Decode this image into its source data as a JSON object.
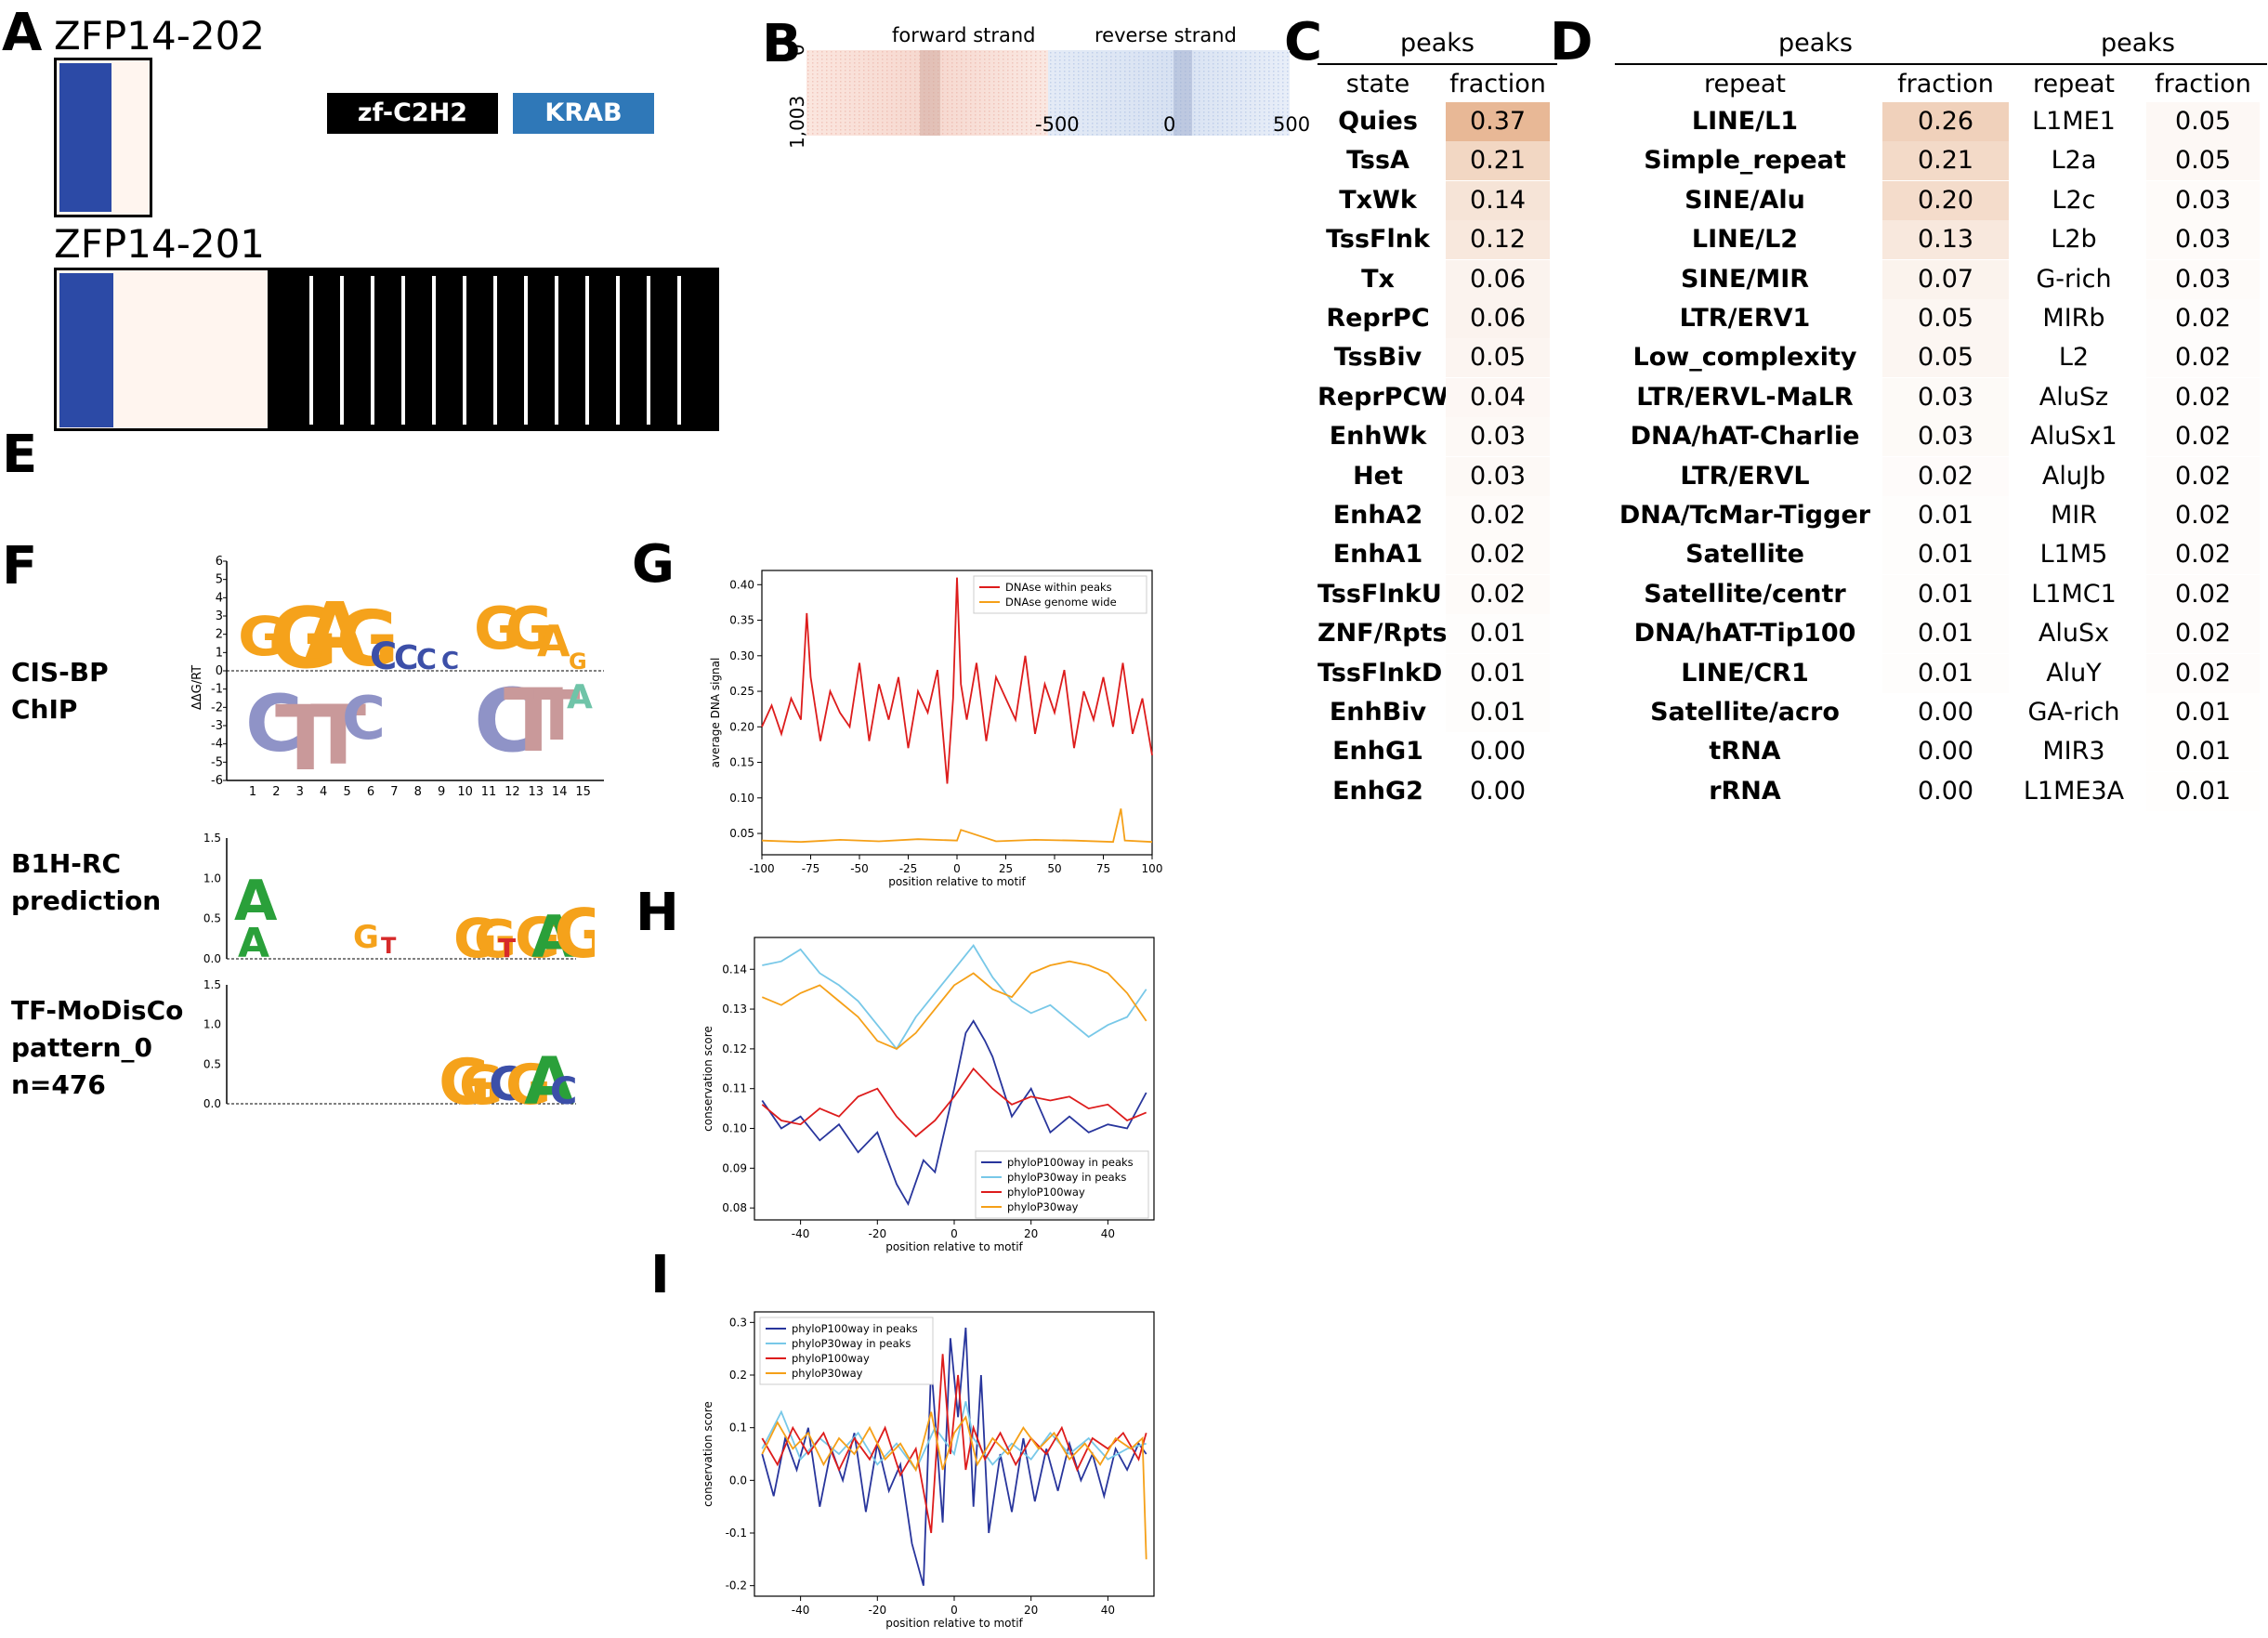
{
  "panels": {
    "A": "A",
    "B": "B",
    "C": "C",
    "D": "D",
    "E": "E",
    "F": "F",
    "G": "G",
    "H": "H",
    "I": "I"
  },
  "isoforms": {
    "iso1": {
      "name": "ZFP14-202"
    },
    "iso2": {
      "name": "ZFP14-201"
    },
    "legend": {
      "zf": "zf-C2H2",
      "krab": "KRAB",
      "zf_color": "#000000",
      "krab_color": "#2f78b8"
    }
  },
  "heatmap_b": {
    "forward": "forward strand",
    "reverse": "reverse strand",
    "ytop": "0",
    "ybottom": "1,003",
    "xticks": [
      "-500",
      "0",
      "500"
    ]
  },
  "table_c": {
    "title": "peaks",
    "col1": "state",
    "col2": "fraction",
    "rows": [
      {
        "k": "Quies",
        "v": "0.37"
      },
      {
        "k": "TssA",
        "v": "0.21"
      },
      {
        "k": "TxWk",
        "v": "0.14"
      },
      {
        "k": "TssFlnk",
        "v": "0.12"
      },
      {
        "k": "Tx",
        "v": "0.06"
      },
      {
        "k": "ReprPC",
        "v": "0.06"
      },
      {
        "k": "TssBiv",
        "v": "0.05"
      },
      {
        "k": "ReprPCWk",
        "v": "0.04"
      },
      {
        "k": "EnhWk",
        "v": "0.03"
      },
      {
        "k": "Het",
        "v": "0.03"
      },
      {
        "k": "EnhA2",
        "v": "0.02"
      },
      {
        "k": "EnhA1",
        "v": "0.02"
      },
      {
        "k": "TssFlnkU",
        "v": "0.02"
      },
      {
        "k": "ZNF/Rpts",
        "v": "0.01"
      },
      {
        "k": "TssFlnkD",
        "v": "0.01"
      },
      {
        "k": "EnhBiv",
        "v": "0.01"
      },
      {
        "k": "EnhG1",
        "v": "0.00"
      },
      {
        "k": "EnhG2",
        "v": "0.00"
      }
    ]
  },
  "table_d1": {
    "title": "peaks",
    "col1": "repeat",
    "col2": "fraction",
    "rows": [
      {
        "k": "LINE/L1",
        "v": "0.26"
      },
      {
        "k": "Simple_repeat",
        "v": "0.21"
      },
      {
        "k": "SINE/Alu",
        "v": "0.20"
      },
      {
        "k": "LINE/L2",
        "v": "0.13"
      },
      {
        "k": "SINE/MIR",
        "v": "0.07"
      },
      {
        "k": "LTR/ERV1",
        "v": "0.05"
      },
      {
        "k": "Low_complexity",
        "v": "0.05"
      },
      {
        "k": "LTR/ERVL-MaLR",
        "v": "0.03"
      },
      {
        "k": "DNA/hAT-Charlie",
        "v": "0.03"
      },
      {
        "k": "LTR/ERVL",
        "v": "0.02"
      },
      {
        "k": "DNA/TcMar-Tigger",
        "v": "0.01"
      },
      {
        "k": "Satellite",
        "v": "0.01"
      },
      {
        "k": "Satellite/centr",
        "v": "0.01"
      },
      {
        "k": "DNA/hAT-Tip100",
        "v": "0.01"
      },
      {
        "k": "LINE/CR1",
        "v": "0.01"
      },
      {
        "k": "Satellite/acro",
        "v": "0.00"
      },
      {
        "k": "tRNA",
        "v": "0.00"
      },
      {
        "k": "rRNA",
        "v": "0.00"
      }
    ]
  },
  "table_d2": {
    "title": "peaks",
    "col1": "repeat",
    "col2": "fraction",
    "rows": [
      {
        "k": "L1ME1",
        "v": "0.05"
      },
      {
        "k": "L2a",
        "v": "0.05"
      },
      {
        "k": "L2c",
        "v": "0.03"
      },
      {
        "k": "L2b",
        "v": "0.03"
      },
      {
        "k": "G-rich",
        "v": "0.03"
      },
      {
        "k": "MIRb",
        "v": "0.02"
      },
      {
        "k": "L2",
        "v": "0.02"
      },
      {
        "k": "AluSz",
        "v": "0.02"
      },
      {
        "k": "AluSx1",
        "v": "0.02"
      },
      {
        "k": "AluJb",
        "v": "0.02"
      },
      {
        "k": "MIR",
        "v": "0.02"
      },
      {
        "k": "L1M5",
        "v": "0.02"
      },
      {
        "k": "L1MC1",
        "v": "0.02"
      },
      {
        "k": "AluSx",
        "v": "0.02"
      },
      {
        "k": "AluY",
        "v": "0.02"
      },
      {
        "k": "GA-rich",
        "v": "0.01"
      },
      {
        "k": "MIR3",
        "v": "0.01"
      },
      {
        "k": "L1ME3A",
        "v": "0.01"
      }
    ]
  },
  "motifs": {
    "cisbp": {
      "label1": "CIS-BP",
      "label2": "ChIP",
      "ylabel": "ΔΔG/RT",
      "yticks": [
        "6",
        "5",
        "4",
        "3",
        "2",
        "1",
        "0",
        "-1",
        "-2",
        "-3",
        "-4",
        "-5",
        "-6"
      ],
      "xticks": [
        "1",
        "2",
        "3",
        "4",
        "5",
        "6",
        "7",
        "8",
        "9",
        "10",
        "11",
        "12",
        "13",
        "14",
        "15"
      ]
    },
    "b1h": {
      "label1": "B1H-RC",
      "label2": "prediction",
      "yticks": [
        "1.5",
        "1.0",
        "0.5",
        "0.0"
      ]
    },
    "modisco": {
      "label1": "TF-MoDisCo",
      "label2": "pattern_0",
      "label3": "n=476",
      "yticks": [
        "1.5",
        "1.0",
        "0.5",
        "0.0"
      ]
    }
  },
  "chart_data": [
    {
      "type": "line",
      "panel": "G",
      "xlabel": "position relative to motif",
      "ylabel": "average DNA signal",
      "xlim": [
        -100,
        100
      ],
      "ylim": [
        0.02,
        0.42
      ],
      "xticks": [
        "-100",
        "-75",
        "-50",
        "-25",
        "0",
        "25",
        "50",
        "75",
        "100"
      ],
      "yticks": [
        "0.05",
        "0.10",
        "0.15",
        "0.20",
        "0.25",
        "0.30",
        "0.35",
        "0.40"
      ],
      "legend": "top-right",
      "series": [
        {
          "name": "DNAse within peaks",
          "color": "#dd1c1c",
          "x": [
            -100,
            -95,
            -90,
            -85,
            -80,
            -77,
            -75,
            -70,
            -65,
            -60,
            -55,
            -50,
            -45,
            -40,
            -35,
            -30,
            -25,
            -20,
            -15,
            -10,
            -5,
            -2,
            0,
            2,
            5,
            10,
            15,
            20,
            25,
            30,
            35,
            40,
            45,
            50,
            55,
            60,
            65,
            70,
            75,
            80,
            85,
            90,
            95,
            100
          ],
          "values": [
            0.2,
            0.23,
            0.19,
            0.24,
            0.21,
            0.36,
            0.27,
            0.18,
            0.25,
            0.22,
            0.2,
            0.29,
            0.18,
            0.26,
            0.21,
            0.27,
            0.17,
            0.25,
            0.22,
            0.28,
            0.12,
            0.24,
            0.41,
            0.26,
            0.21,
            0.29,
            0.18,
            0.27,
            0.24,
            0.21,
            0.3,
            0.19,
            0.26,
            0.22,
            0.28,
            0.17,
            0.25,
            0.21,
            0.27,
            0.2,
            0.29,
            0.19,
            0.24,
            0.16
          ]
        },
        {
          "name": "DNAse genome wide",
          "color": "#f5a018",
          "x": [
            -100,
            -80,
            -60,
            -40,
            -20,
            0,
            2,
            20,
            40,
            60,
            80,
            84,
            86,
            100
          ],
          "values": [
            0.04,
            0.038,
            0.041,
            0.039,
            0.042,
            0.04,
            0.055,
            0.039,
            0.041,
            0.04,
            0.038,
            0.085,
            0.04,
            0.038
          ]
        }
      ]
    },
    {
      "type": "line",
      "panel": "H",
      "xlabel": "position relative to motif",
      "ylabel": "conservation score",
      "xlim": [
        -52,
        52
      ],
      "ylim": [
        0.077,
        0.148
      ],
      "xticks": [
        "-40",
        "-20",
        "0",
        "20",
        "40"
      ],
      "yticks": [
        "0.08",
        "0.09",
        "0.10",
        "0.11",
        "0.12",
        "0.13",
        "0.14"
      ],
      "legend": "bottom-right",
      "series": [
        {
          "name": "phyloP100way in peaks",
          "color": "#28359c",
          "x": [
            -50,
            -45,
            -40,
            -35,
            -30,
            -25,
            -20,
            -15,
            -12,
            -8,
            -5,
            0,
            3,
            5,
            8,
            10,
            15,
            20,
            25,
            30,
            35,
            40,
            45,
            50
          ],
          "values": [
            0.107,
            0.1,
            0.103,
            0.097,
            0.101,
            0.094,
            0.099,
            0.086,
            0.081,
            0.092,
            0.089,
            0.11,
            0.124,
            0.127,
            0.122,
            0.118,
            0.103,
            0.11,
            0.099,
            0.103,
            0.099,
            0.101,
            0.1,
            0.109
          ]
        },
        {
          "name": "phyloP30way in peaks",
          "color": "#78c8e8",
          "x": [
            -50,
            -45,
            -40,
            -35,
            -30,
            -25,
            -20,
            -15,
            -10,
            -5,
            0,
            5,
            10,
            15,
            20,
            25,
            30,
            35,
            40,
            45,
            50
          ],
          "values": [
            0.141,
            0.142,
            0.145,
            0.139,
            0.136,
            0.132,
            0.126,
            0.12,
            0.128,
            0.134,
            0.14,
            0.146,
            0.138,
            0.132,
            0.129,
            0.131,
            0.127,
            0.123,
            0.126,
            0.128,
            0.135
          ]
        },
        {
          "name": "phyloP100way",
          "color": "#dd1c1c",
          "x": [
            -50,
            -45,
            -40,
            -35,
            -30,
            -25,
            -20,
            -15,
            -10,
            -5,
            0,
            5,
            10,
            15,
            20,
            25,
            30,
            35,
            40,
            45,
            50
          ],
          "values": [
            0.106,
            0.102,
            0.101,
            0.105,
            0.103,
            0.108,
            0.11,
            0.103,
            0.098,
            0.102,
            0.108,
            0.115,
            0.11,
            0.106,
            0.108,
            0.107,
            0.108,
            0.105,
            0.106,
            0.102,
            0.104
          ]
        },
        {
          "name": "phyloP30way",
          "color": "#f5a018",
          "x": [
            -50,
            -45,
            -40,
            -35,
            -30,
            -25,
            -20,
            -15,
            -10,
            -5,
            0,
            5,
            10,
            15,
            20,
            25,
            30,
            35,
            40,
            45,
            50
          ],
          "values": [
            0.133,
            0.131,
            0.134,
            0.136,
            0.132,
            0.128,
            0.122,
            0.12,
            0.124,
            0.13,
            0.136,
            0.139,
            0.135,
            0.133,
            0.139,
            0.141,
            0.142,
            0.141,
            0.139,
            0.134,
            0.127
          ]
        }
      ]
    },
    {
      "type": "line",
      "panel": "I",
      "xlabel": "position relative to motif",
      "ylabel": "conservation score",
      "xlim": [
        -52,
        52
      ],
      "ylim": [
        -0.22,
        0.32
      ],
      "xticks": [
        "-40",
        "-20",
        "0",
        "20",
        "40"
      ],
      "yticks": [
        "-0.2",
        "-0.1",
        "0.0",
        "0.1",
        "0.2",
        "0.3"
      ],
      "legend": "top-left",
      "series": [
        {
          "name": "phyloP100way in peaks",
          "color": "#28359c",
          "x": [
            -50,
            -47,
            -44,
            -41,
            -38,
            -35,
            -32,
            -29,
            -26,
            -23,
            -20,
            -17,
            -14,
            -11,
            -8,
            -6,
            -3,
            -1,
            1,
            3,
            5,
            7,
            9,
            12,
            15,
            18,
            21,
            24,
            27,
            30,
            33,
            36,
            39,
            42,
            45,
            48,
            50
          ],
          "values": [
            0.05,
            -0.03,
            0.08,
            0.02,
            0.1,
            -0.05,
            0.06,
            0.0,
            0.09,
            -0.06,
            0.07,
            -0.02,
            0.03,
            -0.12,
            -0.2,
            0.22,
            -0.08,
            0.27,
            0.12,
            0.29,
            -0.05,
            0.2,
            -0.1,
            0.05,
            -0.06,
            0.08,
            -0.04,
            0.06,
            -0.02,
            0.07,
            0.0,
            0.05,
            -0.03,
            0.06,
            0.02,
            0.07,
            0.05
          ]
        },
        {
          "name": "phyloP30way in peaks",
          "color": "#78c8e8",
          "x": [
            -50,
            -45,
            -40,
            -35,
            -30,
            -25,
            -20,
            -15,
            -10,
            -5,
            0,
            3,
            5,
            10,
            15,
            20,
            25,
            30,
            35,
            40,
            45,
            50
          ],
          "values": [
            0.06,
            0.13,
            0.04,
            0.08,
            0.05,
            0.09,
            0.03,
            0.07,
            0.02,
            0.1,
            0.05,
            0.15,
            0.08,
            0.03,
            0.07,
            0.04,
            0.09,
            0.05,
            0.08,
            0.04,
            0.06,
            0.07
          ]
        },
        {
          "name": "phyloP100way",
          "color": "#dd1c1c",
          "x": [
            -50,
            -46,
            -42,
            -38,
            -34,
            -30,
            -26,
            -22,
            -18,
            -14,
            -10,
            -6,
            -3,
            -1,
            1,
            3,
            5,
            8,
            12,
            16,
            20,
            24,
            28,
            32,
            36,
            40,
            44,
            48,
            50
          ],
          "values": [
            0.08,
            0.03,
            0.1,
            0.05,
            0.09,
            0.02,
            0.08,
            0.04,
            0.1,
            0.01,
            0.06,
            -0.1,
            0.24,
            0.05,
            0.2,
            0.02,
            0.1,
            0.04,
            0.09,
            0.03,
            0.08,
            0.05,
            0.1,
            0.02,
            0.08,
            0.06,
            0.09,
            0.04,
            0.09
          ]
        },
        {
          "name": "phyloP30way",
          "color": "#f5a018",
          "x": [
            -50,
            -46,
            -42,
            -38,
            -34,
            -30,
            -26,
            -22,
            -18,
            -14,
            -10,
            -6,
            -3,
            0,
            3,
            6,
            10,
            14,
            18,
            22,
            26,
            30,
            34,
            38,
            42,
            46,
            49,
            50
          ],
          "values": [
            0.05,
            0.11,
            0.06,
            0.09,
            0.03,
            0.08,
            0.05,
            0.1,
            0.04,
            0.07,
            0.02,
            0.13,
            0.02,
            0.09,
            0.12,
            0.03,
            0.08,
            0.05,
            0.1,
            0.06,
            0.09,
            0.04,
            0.07,
            0.03,
            0.08,
            0.06,
            0.08,
            -0.15
          ]
        }
      ]
    }
  ]
}
